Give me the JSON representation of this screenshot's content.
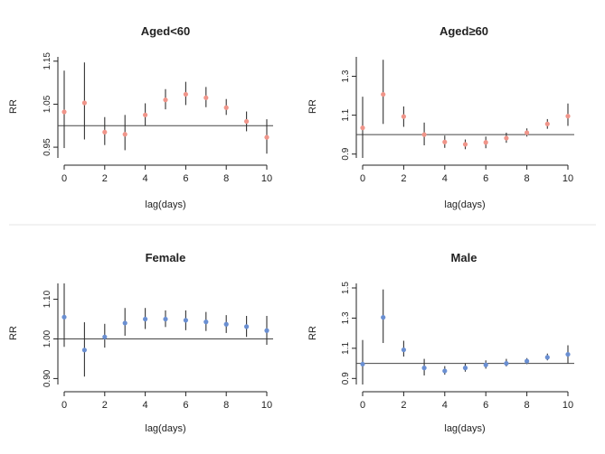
{
  "colors": {
    "salmon": "#f0958a",
    "blue": "#6a8fd2"
  },
  "chart_data": [
    {
      "type": "scatter",
      "title": "Aged<60",
      "xlabel": "lag(days)",
      "ylabel": "RR",
      "x": [
        0,
        1,
        2,
        3,
        4,
        5,
        6,
        7,
        8,
        9,
        10
      ],
      "xticks": [
        0,
        2,
        4,
        6,
        8,
        10
      ],
      "xtick_labels": [
        "0",
        "2",
        "4",
        "6",
        "8",
        "10"
      ],
      "ylim": [
        0.925,
        1.16
      ],
      "yticks": [
        0.95,
        1.05,
        1.15
      ],
      "ytick_labels": [
        "0.95",
        "1.05",
        "1.15"
      ],
      "reference": 1.0,
      "color": "salmon",
      "series": [
        {
          "name": "RR",
          "values": [
            1.032,
            1.053,
            0.985,
            0.98,
            1.025,
            1.06,
            1.073,
            1.065,
            1.042,
            1.01,
            0.973
          ],
          "lower": [
            0.948,
            0.968,
            0.955,
            0.943,
            1.0,
            1.038,
            1.048,
            1.043,
            1.025,
            0.987,
            0.935
          ],
          "upper": [
            1.128,
            1.147,
            1.02,
            1.025,
            1.052,
            1.085,
            1.102,
            1.09,
            1.062,
            1.033,
            1.015
          ]
        }
      ]
    },
    {
      "type": "scatter",
      "title": "Aged≥60",
      "xlabel": "lag(days)",
      "ylabel": "RR",
      "x": [
        0,
        1,
        2,
        3,
        4,
        5,
        6,
        7,
        8,
        9,
        10
      ],
      "xticks": [
        0,
        2,
        4,
        6,
        8,
        10
      ],
      "xtick_labels": [
        "0",
        "2",
        "4",
        "6",
        "8",
        "10"
      ],
      "ylim": [
        0.88,
        1.4
      ],
      "yticks": [
        0.9,
        1.1,
        1.3
      ],
      "ytick_labels": [
        "0.9",
        "1.1",
        "1.3"
      ],
      "reference": 1.0,
      "color": "salmon",
      "series": [
        {
          "name": "RR",
          "values": [
            1.035,
            1.207,
            1.093,
            1.0,
            0.962,
            0.95,
            0.96,
            0.982,
            1.01,
            1.055,
            1.095
          ],
          "lower": [
            0.88,
            1.055,
            1.04,
            0.945,
            0.932,
            0.925,
            0.93,
            0.958,
            0.99,
            1.03,
            1.045
          ],
          "upper": [
            1.195,
            1.385,
            1.145,
            1.062,
            0.995,
            0.975,
            0.99,
            1.01,
            1.032,
            1.08,
            1.16
          ]
        }
      ]
    },
    {
      "type": "scatter",
      "title": "Female",
      "xlabel": "lag(days)",
      "ylabel": "RR",
      "x": [
        0,
        1,
        2,
        3,
        4,
        5,
        6,
        7,
        8,
        9,
        10
      ],
      "xticks": [
        0,
        2,
        4,
        6,
        8,
        10
      ],
      "xtick_labels": [
        "0",
        "2",
        "4",
        "6",
        "8",
        "10"
      ],
      "ylim": [
        0.885,
        1.14
      ],
      "yticks": [
        0.9,
        1.0,
        1.1
      ],
      "ytick_labels": [
        "0.90",
        "1.00",
        "1.10"
      ],
      "reference": 1.0,
      "color": "blue",
      "series": [
        {
          "name": "RR",
          "values": [
            1.055,
            0.972,
            1.005,
            1.04,
            1.05,
            1.05,
            1.047,
            1.043,
            1.037,
            1.031,
            1.021
          ],
          "lower": [
            0.98,
            0.905,
            0.978,
            1.008,
            1.025,
            1.03,
            1.022,
            1.02,
            1.015,
            1.005,
            0.985
          ],
          "upper": [
            1.14,
            1.042,
            1.038,
            1.078,
            1.078,
            1.072,
            1.072,
            1.068,
            1.06,
            1.058,
            1.058
          ]
        }
      ]
    },
    {
      "type": "scatter",
      "title": "Male",
      "xlabel": "lag(days)",
      "ylabel": "RR",
      "x": [
        0,
        1,
        2,
        3,
        4,
        5,
        6,
        7,
        8,
        9,
        10
      ],
      "xticks": [
        0,
        2,
        4,
        6,
        8,
        10
      ],
      "xtick_labels": [
        "0",
        "2",
        "4",
        "6",
        "8",
        "10"
      ],
      "ylim": [
        0.86,
        1.53
      ],
      "yticks": [
        0.9,
        1.1,
        1.3,
        1.5
      ],
      "ytick_labels": [
        "0.9",
        "1.1",
        "1.3",
        "1.5"
      ],
      "reference": 1.0,
      "color": "blue",
      "series": [
        {
          "name": "RR",
          "values": [
            0.995,
            1.305,
            1.09,
            0.97,
            0.95,
            0.97,
            0.99,
            1.0,
            1.015,
            1.04,
            1.06
          ],
          "lower": [
            0.86,
            1.135,
            1.045,
            0.92,
            0.925,
            0.945,
            0.965,
            0.98,
            0.995,
            1.02,
            1.0
          ],
          "upper": [
            1.155,
            1.49,
            1.15,
            1.03,
            0.982,
            1.0,
            1.02,
            1.03,
            1.035,
            1.065,
            1.12
          ]
        }
      ]
    }
  ]
}
